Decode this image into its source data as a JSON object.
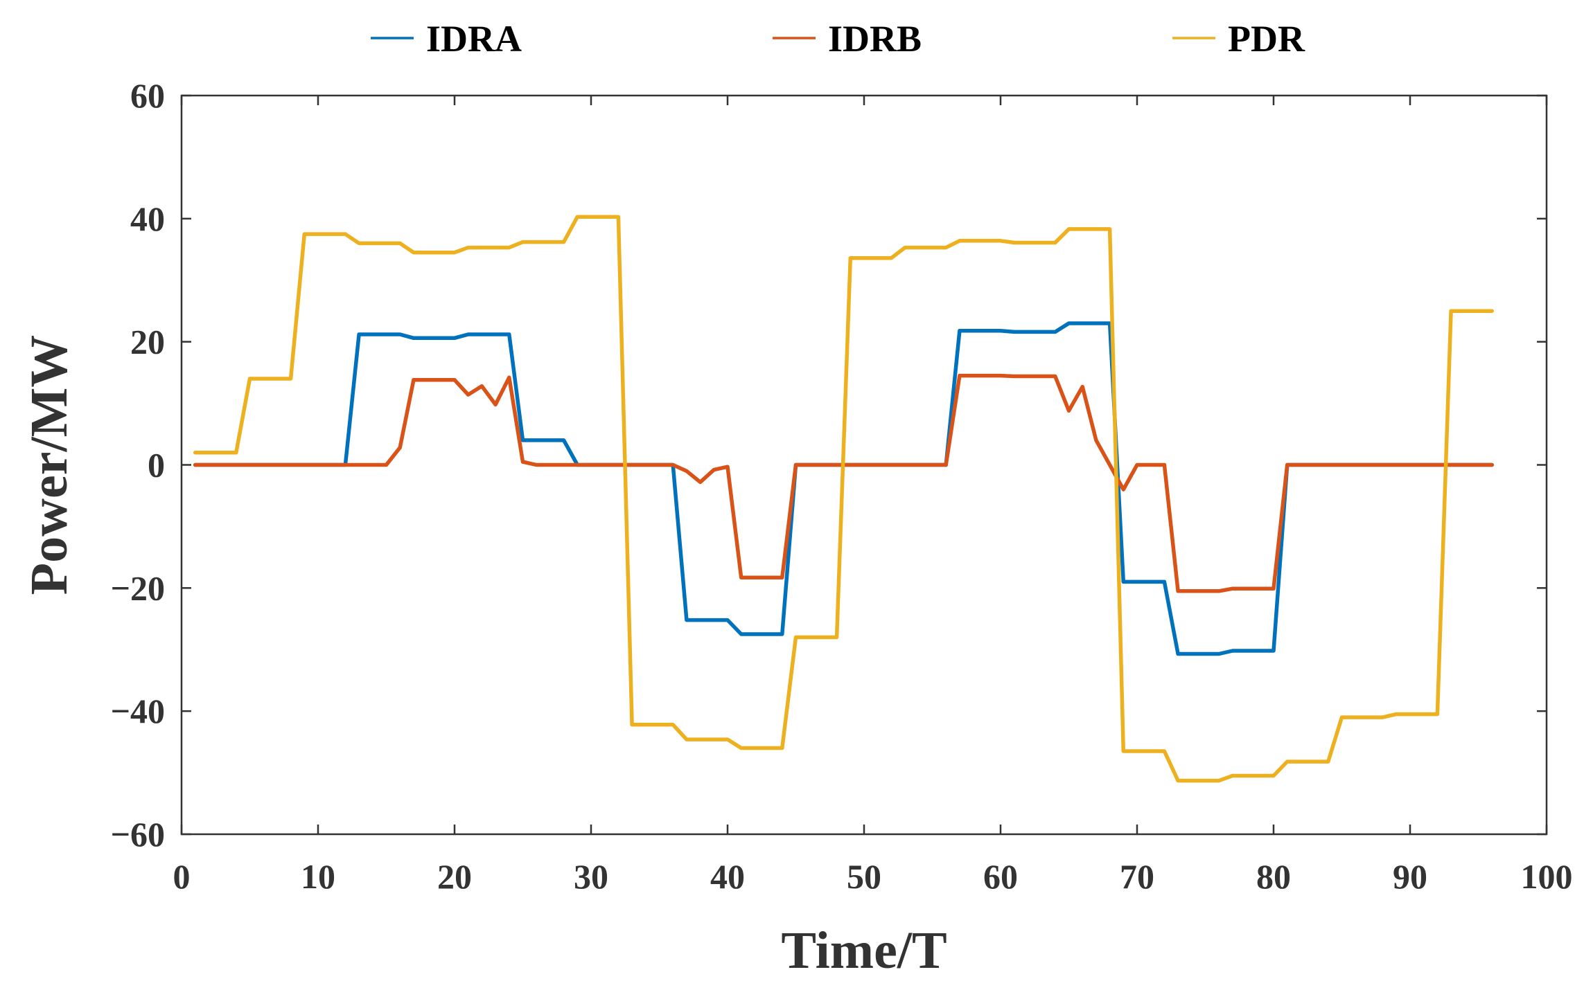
{
  "chart_data": {
    "type": "line",
    "xlabel": "Time/T",
    "ylabel": "Power/MW",
    "xlim": [
      0,
      100
    ],
    "ylim": [
      -60,
      60
    ],
    "xticks": [
      0,
      10,
      20,
      30,
      40,
      50,
      60,
      70,
      80,
      90,
      100
    ],
    "yticks": [
      -60,
      -40,
      -20,
      0,
      20,
      40,
      60
    ],
    "xtick_labels": [
      "0",
      "10",
      "20",
      "30",
      "40",
      "50",
      "60",
      "70",
      "80",
      "90",
      "100"
    ],
    "ytick_labels": [
      "−60",
      "−40",
      "−20",
      "0",
      "20",
      "40",
      "60"
    ],
    "grid": false,
    "legend_position": "top",
    "x": [
      1,
      2,
      3,
      4,
      5,
      6,
      7,
      8,
      9,
      10,
      11,
      12,
      13,
      14,
      15,
      16,
      17,
      18,
      19,
      20,
      21,
      22,
      23,
      24,
      25,
      26,
      27,
      28,
      29,
      30,
      31,
      32,
      33,
      34,
      35,
      36,
      37,
      38,
      39,
      40,
      41,
      42,
      43,
      44,
      45,
      46,
      47,
      48,
      49,
      50,
      51,
      52,
      53,
      54,
      55,
      56,
      57,
      58,
      59,
      60,
      61,
      62,
      63,
      64,
      65,
      66,
      67,
      68,
      69,
      70,
      71,
      72,
      73,
      74,
      75,
      76,
      77,
      78,
      79,
      80,
      81,
      82,
      83,
      84,
      85,
      86,
      87,
      88,
      89,
      90,
      91,
      92,
      93,
      94,
      95,
      96
    ],
    "series": [
      {
        "name": "IDRA",
        "color": "#0072BD",
        "values": [
          0,
          0,
          0,
          0,
          0,
          0,
          0,
          0,
          0,
          0,
          0,
          0,
          21.2,
          21.2,
          21.2,
          21.2,
          20.6,
          20.6,
          20.6,
          20.6,
          21.2,
          21.2,
          21.2,
          21.2,
          4,
          4,
          4,
          4,
          0,
          0,
          0,
          0,
          0,
          0,
          0,
          0,
          -25.2,
          -25.2,
          -25.2,
          -25.2,
          -27.5,
          -27.5,
          -27.5,
          -27.5,
          0,
          0,
          0,
          0,
          0,
          0,
          0,
          0,
          0,
          0,
          0,
          0,
          21.8,
          21.8,
          21.8,
          21.8,
          21.6,
          21.6,
          21.6,
          21.6,
          23,
          23,
          23,
          23,
          -19,
          -19,
          -19,
          -19,
          -30.7,
          -30.7,
          -30.7,
          -30.7,
          -30.2,
          -30.2,
          -30.2,
          -30.2,
          0,
          0,
          0,
          0,
          0,
          0,
          0,
          0,
          0,
          0,
          0,
          0,
          0,
          0,
          0,
          0
        ]
      },
      {
        "name": "IDRB",
        "color": "#D95319",
        "values": [
          0,
          0,
          0,
          0,
          0,
          0,
          0,
          0,
          0,
          0,
          0,
          0,
          0,
          0,
          0,
          2.8,
          13.8,
          13.8,
          13.8,
          13.8,
          11.4,
          12.8,
          9.8,
          14.2,
          0.5,
          0,
          0,
          0,
          0,
          0,
          0,
          0,
          0,
          0,
          0,
          0,
          -1,
          -2.8,
          -0.8,
          -0.3,
          -18.3,
          -18.3,
          -18.3,
          -18.3,
          0,
          0,
          0,
          0,
          0,
          0,
          0,
          0,
          0,
          0,
          0,
          0,
          14.5,
          14.5,
          14.5,
          14.5,
          14.4,
          14.4,
          14.4,
          14.4,
          8.8,
          12.7,
          4,
          0,
          -4,
          0,
          0,
          0,
          -20.5,
          -20.5,
          -20.5,
          -20.5,
          -20.1,
          -20.1,
          -20.1,
          -20.1,
          0,
          0,
          0,
          0,
          0,
          0,
          0,
          0,
          0,
          0,
          0,
          0,
          0,
          0,
          0,
          0
        ]
      },
      {
        "name": "PDR",
        "color": "#EDB120",
        "values": [
          2,
          2,
          2,
          2,
          14,
          14,
          14,
          14,
          37.5,
          37.5,
          37.5,
          37.5,
          36,
          36,
          36,
          36,
          34.5,
          34.5,
          34.5,
          34.5,
          35.3,
          35.3,
          35.3,
          35.3,
          36.2,
          36.2,
          36.2,
          36.2,
          40.3,
          40.3,
          40.3,
          40.3,
          -42.2,
          -42.2,
          -42.2,
          -42.2,
          -44.6,
          -44.6,
          -44.6,
          -44.6,
          -46,
          -46,
          -46,
          -46,
          -28,
          -28,
          -28,
          -28,
          33.6,
          33.6,
          33.6,
          33.6,
          35.3,
          35.3,
          35.3,
          35.3,
          36.4,
          36.4,
          36.4,
          36.4,
          36.1,
          36.1,
          36.1,
          36.1,
          38.3,
          38.3,
          38.3,
          38.3,
          -46.5,
          -46.5,
          -46.5,
          -46.5,
          -51.3,
          -51.3,
          -51.3,
          -51.3,
          -50.5,
          -50.5,
          -50.5,
          -50.5,
          -48.2,
          -48.2,
          -48.2,
          -48.2,
          -41,
          -41,
          -41,
          -41,
          -40.5,
          -40.5,
          -40.5,
          -40.5,
          25,
          25,
          25,
          25
        ]
      }
    ]
  }
}
